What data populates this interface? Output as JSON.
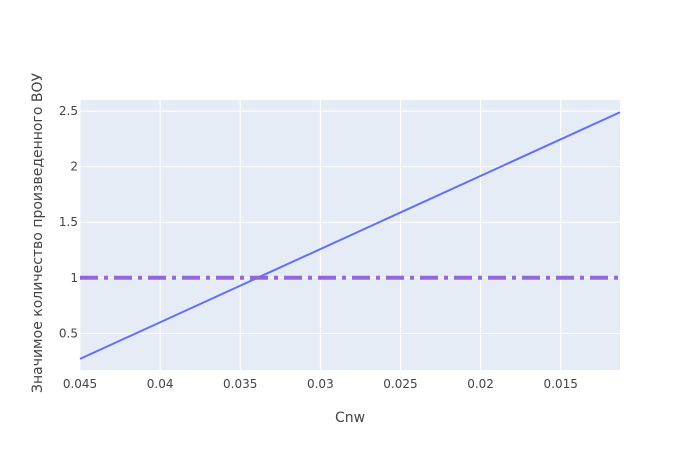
{
  "chart_data": {
    "type": "line",
    "title": "",
    "xlabel": "Cnw",
    "ylabel": "Значимое количество произведенного ВОУ",
    "x_reversed": true,
    "xlim": [
      0.045,
      0.0113
    ],
    "ylim": [
      0.17,
      2.6
    ],
    "x_ticks": [
      {
        "value": 0.045,
        "label": "0.045"
      },
      {
        "value": 0.04,
        "label": "0.04"
      },
      {
        "value": 0.035,
        "label": "0.035"
      },
      {
        "value": 0.03,
        "label": "0.03"
      },
      {
        "value": 0.025,
        "label": "0.025"
      },
      {
        "value": 0.02,
        "label": "0.02"
      },
      {
        "value": 0.015,
        "label": "0.015"
      }
    ],
    "y_ticks": [
      {
        "value": 0.5,
        "label": "0.5"
      },
      {
        "value": 1,
        "label": "1"
      },
      {
        "value": 1.5,
        "label": "1.5"
      },
      {
        "value": 2,
        "label": "2"
      },
      {
        "value": 2.5,
        "label": "2.5"
      }
    ],
    "grid": true,
    "series": [
      {
        "style": "solid",
        "color": "#636efa",
        "x": [
          0.045,
          0.0113
        ],
        "y": [
          0.27,
          2.49
        ]
      },
      {
        "style": "dashdot",
        "color": "#9467d9",
        "x": [
          0.045,
          0.0113
        ],
        "y": [
          1,
          1
        ]
      }
    ]
  },
  "colors": {
    "plot_background": "#e5ecf6",
    "grid": "#ffffff",
    "text": "#444444"
  }
}
